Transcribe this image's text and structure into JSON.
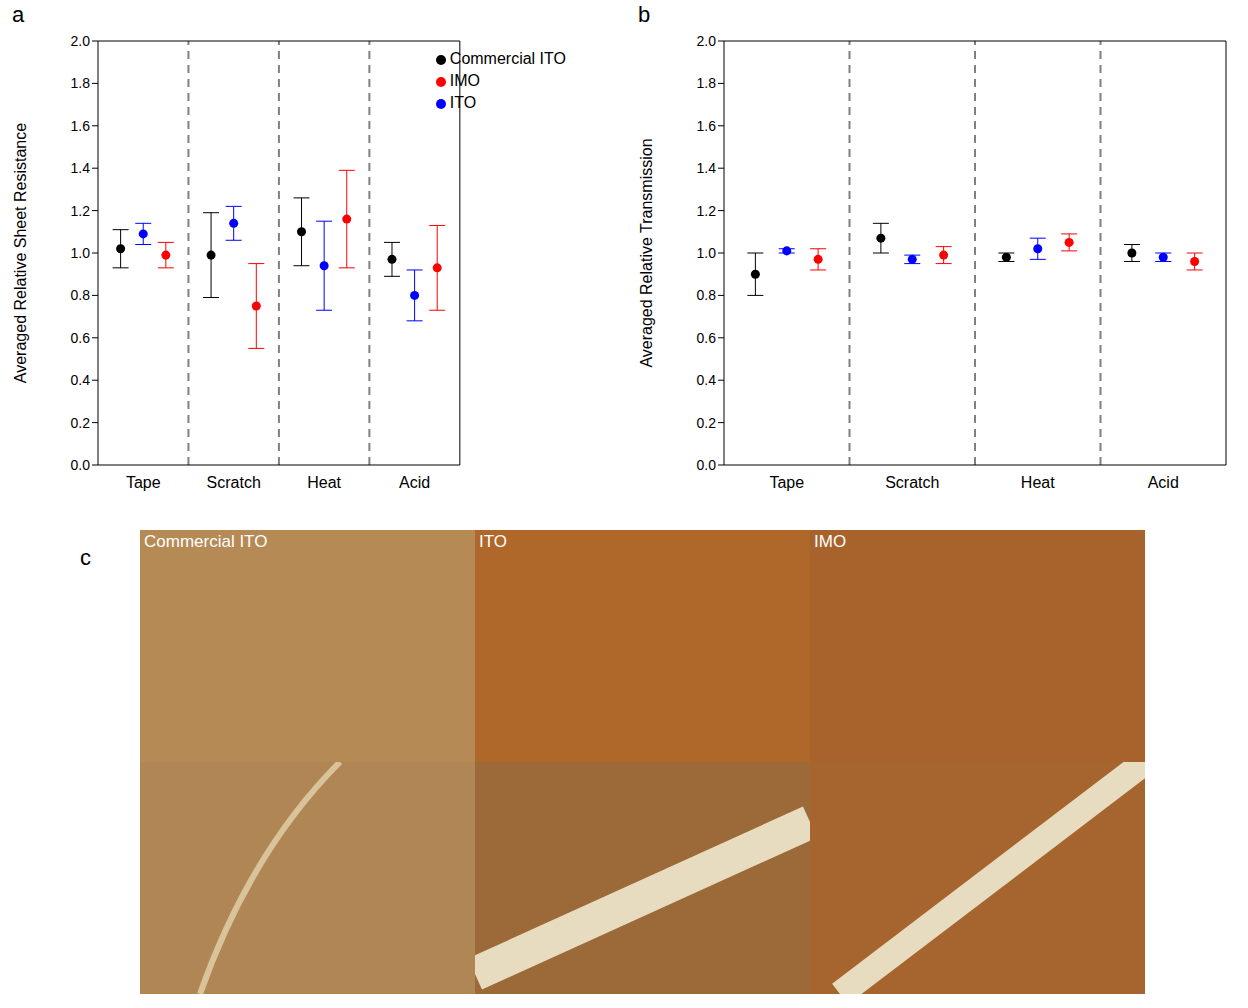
{
  "chart_data": [
    {
      "type": "scatter",
      "panel": "a",
      "y_label": "Averaged Relative Sheet Resistance",
      "categories": [
        "Tape",
        "Scratch",
        "Heat",
        "Acid"
      ],
      "ylim": [
        0,
        2
      ],
      "yticks": [
        {
          "value": 0,
          "label": "0.0"
        },
        0.2,
        0.4,
        0.6,
        0.8,
        {
          "value": 1,
          "label": "1.0"
        },
        1.2,
        1.4,
        1.6,
        1.8,
        {
          "value": 2,
          "label": "2.0"
        }
      ],
      "legend": "upper right",
      "series": [
        {
          "name": "Commercial ITO",
          "color": "#000000",
          "marker": "circle",
          "values": [
            1.02,
            0.99,
            1.1,
            0.97
          ],
          "errors": [
            0.09,
            0.2,
            0.16,
            0.08
          ]
        },
        {
          "name": "ITO",
          "color": "#0000ff",
          "marker": "circle",
          "values": [
            1.09,
            1.14,
            0.94,
            0.8
          ],
          "errors": [
            0.05,
            0.08,
            0.21,
            0.12
          ]
        },
        {
          "name": "IMO",
          "color": "#ff0000",
          "marker": "circle",
          "values": [
            0.99,
            0.75,
            1.16,
            0.93
          ],
          "errors": [
            0.06,
            0.2,
            0.23,
            0.2
          ]
        }
      ]
    },
    {
      "type": "scatter",
      "panel": "b",
      "y_label": "Averaged Relative Transmission",
      "categories": [
        "Tape",
        "Scratch",
        "Heat",
        "Acid"
      ],
      "ylim": [
        0,
        2
      ],
      "yticks": [
        {
          "value": 0,
          "label": "0.0"
        },
        0.2,
        0.4,
        0.6,
        0.8,
        {
          "value": 1,
          "label": "1.0"
        },
        1.2,
        1.4,
        1.6,
        1.8,
        {
          "value": 2,
          "label": "2.0"
        }
      ],
      "series": [
        {
          "name": "Commercial ITO",
          "color": "#000000",
          "marker": "circle",
          "values": [
            0.9,
            1.07,
            0.98,
            1.0
          ],
          "errors": [
            0.1,
            0.07,
            0.02,
            0.04
          ]
        },
        {
          "name": "ITO",
          "color": "#0000ff",
          "marker": "circle",
          "values": [
            1.01,
            0.97,
            1.02,
            0.98
          ],
          "errors": [
            0.01,
            0.02,
            0.05,
            0.02
          ]
        },
        {
          "name": "IMO",
          "color": "#ff0000",
          "marker": "circle",
          "values": [
            0.97,
            0.99,
            1.05,
            0.96
          ],
          "errors": [
            0.05,
            0.04,
            0.04,
            0.04
          ]
        }
      ]
    }
  ],
  "images": {
    "panel": "c",
    "columns": [
      "Commercial ITO",
      "ITO",
      "IMO"
    ]
  }
}
